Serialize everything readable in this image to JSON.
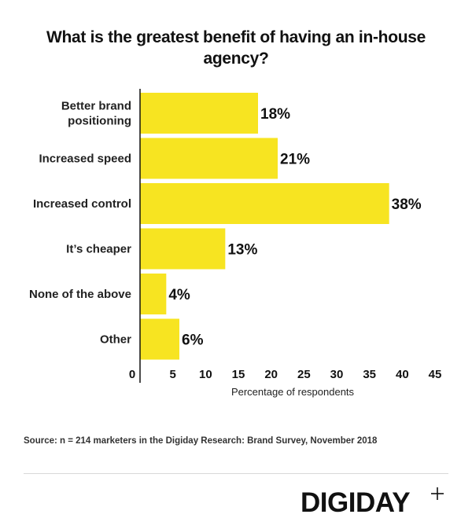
{
  "chart_data": {
    "type": "bar",
    "orientation": "horizontal",
    "title": "What is the greatest benefit of having an in-house agency?",
    "categories": [
      [
        "Better brand",
        "positioning"
      ],
      [
        "Increased speed"
      ],
      [
        "Increased control"
      ],
      [
        "It’s cheaper"
      ],
      [
        "None of the above"
      ],
      [
        "Other"
      ]
    ],
    "values": [
      18,
      21,
      38,
      13,
      4,
      6
    ],
    "value_labels": [
      "18%",
      "21%",
      "38%",
      "13%",
      "4%",
      "6%"
    ],
    "xlabel": "Percentage of respondents",
    "xlim": [
      0,
      45
    ],
    "xticks": [
      0,
      5,
      10,
      15,
      20,
      25,
      30,
      35,
      40,
      45
    ],
    "bar_color": "#f7e421",
    "grid": false
  },
  "source": "Source: n = 214 marketers in the Digiday Research: Brand Survey, November 2018",
  "brand": {
    "name": "DIGIDAY",
    "plus_icon": "plus-icon"
  }
}
